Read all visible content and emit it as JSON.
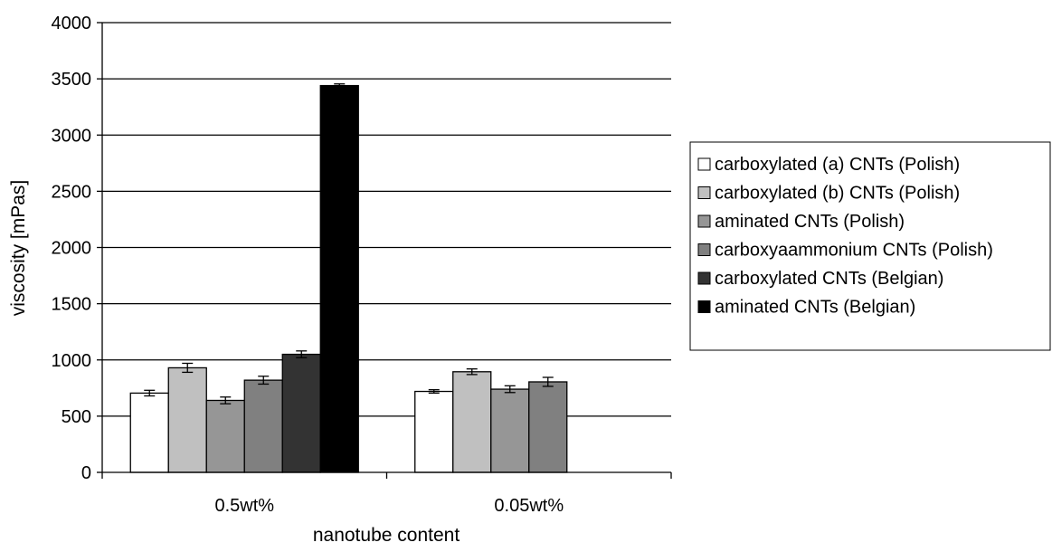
{
  "chart_data": {
    "type": "bar",
    "title": "",
    "xlabel": "nanotube content",
    "ylabel": "viscosity [mPas]",
    "ylim": [
      0,
      4000
    ],
    "yticks": [
      0,
      500,
      1000,
      1500,
      2000,
      2500,
      3000,
      3500,
      4000
    ],
    "grid": "horizontal major gridlines",
    "legend_position": "right",
    "categories": [
      "0.5wt%",
      "0.05wt%"
    ],
    "series": [
      {
        "name": "carboxylated (a) CNTs (Polish)",
        "color": "#ffffff",
        "values": [
          705,
          720
        ],
        "errors": [
          25,
          15
        ]
      },
      {
        "name": "carboxylated (b) CNTs (Polish)",
        "color": "#c0c0c0",
        "values": [
          930,
          895
        ],
        "errors": [
          40,
          25
        ]
      },
      {
        "name": "aminated CNTs (Polish)",
        "color": "#969696",
        "values": [
          640,
          740
        ],
        "errors": [
          30,
          30
        ]
      },
      {
        "name": "carboxyaammonium CNTs (Polish)",
        "color": "#808080",
        "values": [
          820,
          805
        ],
        "errors": [
          35,
          40
        ]
      },
      {
        "name": "carboxylated CNTs (Belgian)",
        "color": "#333333",
        "values": [
          1050,
          null
        ],
        "errors": [
          30,
          null
        ]
      },
      {
        "name": "aminated CNTs (Belgian)",
        "color": "#000000",
        "values": [
          3440,
          null
        ],
        "errors": [
          15,
          null
        ]
      }
    ]
  }
}
